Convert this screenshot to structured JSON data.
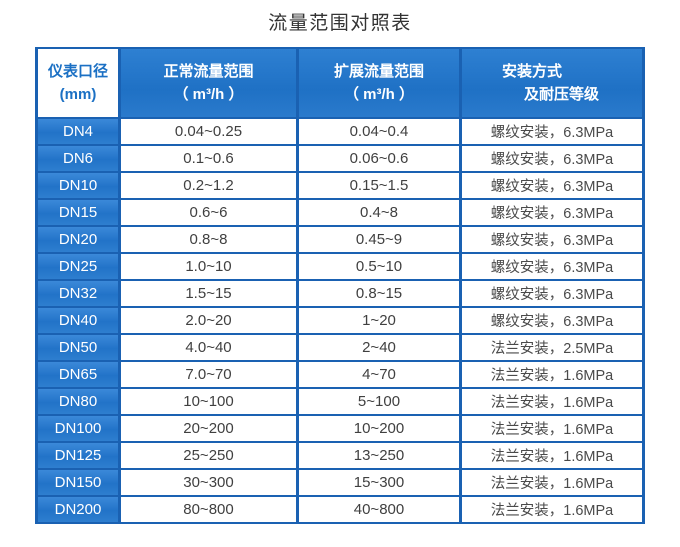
{
  "page": {
    "title": "流量范围对照表"
  },
  "colors": {
    "header_blue": "#2176c9",
    "separator_blue": "#1a61b2",
    "dn_cell_blue": "#2979cd",
    "corner_cell_bg": "#ffffff",
    "corner_text_blue": "#1b70c4",
    "body_text": "#404040",
    "title_text": "#333333"
  },
  "table": {
    "header": {
      "col1_line1": "仪表口径",
      "col1_line2": "(mm)",
      "col2_line1": "正常流量范围",
      "col2_line2": "（ m³/h ）",
      "col3_line1": "扩展流量范围",
      "col3_line2": "（ m³/h ）",
      "col4_line1": "安装方式",
      "col4_line2": "及耐压等级"
    },
    "rows": [
      {
        "dn": "DN4",
        "normal": "0.04~0.25",
        "extended": "0.04~0.4",
        "install": "螺纹安装，6.3MPa"
      },
      {
        "dn": "DN6",
        "normal": "0.1~0.6",
        "extended": "0.06~0.6",
        "install": "螺纹安装，6.3MPa"
      },
      {
        "dn": "DN10",
        "normal": "0.2~1.2",
        "extended": "0.15~1.5",
        "install": "螺纹安装，6.3MPa"
      },
      {
        "dn": "DN15",
        "normal": "0.6~6",
        "extended": "0.4~8",
        "install": "螺纹安装，6.3MPa"
      },
      {
        "dn": "DN20",
        "normal": "0.8~8",
        "extended": "0.45~9",
        "install": "螺纹安装，6.3MPa"
      },
      {
        "dn": "DN25",
        "normal": "1.0~10",
        "extended": "0.5~10",
        "install": "螺纹安装，6.3MPa"
      },
      {
        "dn": "DN32",
        "normal": "1.5~15",
        "extended": "0.8~15",
        "install": "螺纹安装，6.3MPa"
      },
      {
        "dn": "DN40",
        "normal": "2.0~20",
        "extended": "1~20",
        "install": "螺纹安装，6.3MPa"
      },
      {
        "dn": "DN50",
        "normal": "4.0~40",
        "extended": "2~40",
        "install": "法兰安装，2.5MPa"
      },
      {
        "dn": "DN65",
        "normal": "7.0~70",
        "extended": "4~70",
        "install": "法兰安装，1.6MPa"
      },
      {
        "dn": "DN80",
        "normal": "10~100",
        "extended": "5~100",
        "install": "法兰安装，1.6MPa"
      },
      {
        "dn": "DN100",
        "normal": "20~200",
        "extended": "10~200",
        "install": "法兰安装，1.6MPa"
      },
      {
        "dn": "DN125",
        "normal": "25~250",
        "extended": "13~250",
        "install": "法兰安装，1.6MPa"
      },
      {
        "dn": "DN150",
        "normal": "30~300",
        "extended": "15~300",
        "install": "法兰安装，1.6MPa"
      },
      {
        "dn": "DN200",
        "normal": "80~800",
        "extended": "40~800",
        "install": "法兰安装，1.6MPa"
      }
    ]
  }
}
